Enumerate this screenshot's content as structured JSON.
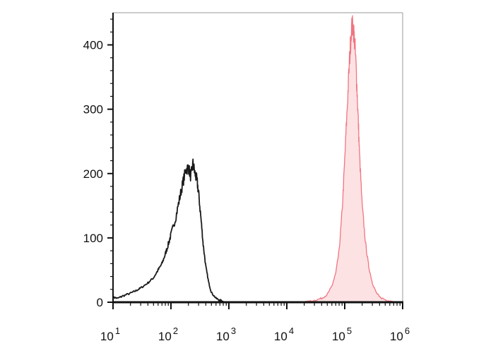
{
  "chart_data": {
    "type": "area",
    "title": "",
    "xlabel": "",
    "ylabel": "",
    "x_scale": "log",
    "xlim": [
      10,
      1000000
    ],
    "ylim": [
      0,
      450
    ],
    "grid": false,
    "x_ticks": [
      {
        "value": 10,
        "base": "10",
        "exp": "1"
      },
      {
        "value": 100,
        "base": "10",
        "exp": "2"
      },
      {
        "value": 1000,
        "base": "10",
        "exp": "3"
      },
      {
        "value": 10000,
        "base": "10",
        "exp": "4"
      },
      {
        "value": 100000,
        "base": "10",
        "exp": "5"
      },
      {
        "value": 1000000,
        "base": "10",
        "exp": "6"
      }
    ],
    "y_ticks": [
      {
        "value": 0,
        "label": "0"
      },
      {
        "value": 100,
        "label": "100"
      },
      {
        "value": 200,
        "label": "200"
      },
      {
        "value": 300,
        "label": "300"
      },
      {
        "value": 400,
        "label": "400"
      }
    ],
    "series": [
      {
        "color": "#1a1a1a",
        "fill": "none",
        "x": [
          10,
          12,
          15,
          20,
          25,
          30,
          40,
          50,
          60,
          70,
          80,
          90,
          100,
          120,
          140,
          160,
          180,
          200,
          220,
          240,
          260,
          280,
          300,
          330,
          360,
          400,
          450,
          500,
          600,
          700,
          800,
          900,
          1000
        ],
        "y": [
          8,
          6,
          10,
          14,
          18,
          22,
          30,
          38,
          50,
          60,
          75,
          90,
          105,
          130,
          160,
          185,
          205,
          210,
          195,
          215,
          200,
          190,
          170,
          130,
          90,
          55,
          30,
          15,
          6,
          3,
          1,
          0,
          0
        ]
      },
      {
        "color": "#f07580",
        "fill": "#fde2e4",
        "x": [
          12000,
          20000,
          30000,
          40000,
          50000,
          60000,
          70000,
          80000,
          90000,
          100000,
          110000,
          120000,
          130000,
          140000,
          150000,
          160000,
          170000,
          180000,
          200000,
          230000,
          260000,
          300000,
          350000,
          400000,
          500000,
          600000,
          700000,
          800000,
          1000000
        ],
        "y": [
          0,
          1,
          3,
          6,
          12,
          25,
          45,
          80,
          140,
          220,
          300,
          370,
          425,
          430,
          400,
          350,
          290,
          230,
          150,
          90,
          55,
          30,
          15,
          8,
          4,
          2,
          1,
          1,
          0
        ]
      }
    ]
  }
}
